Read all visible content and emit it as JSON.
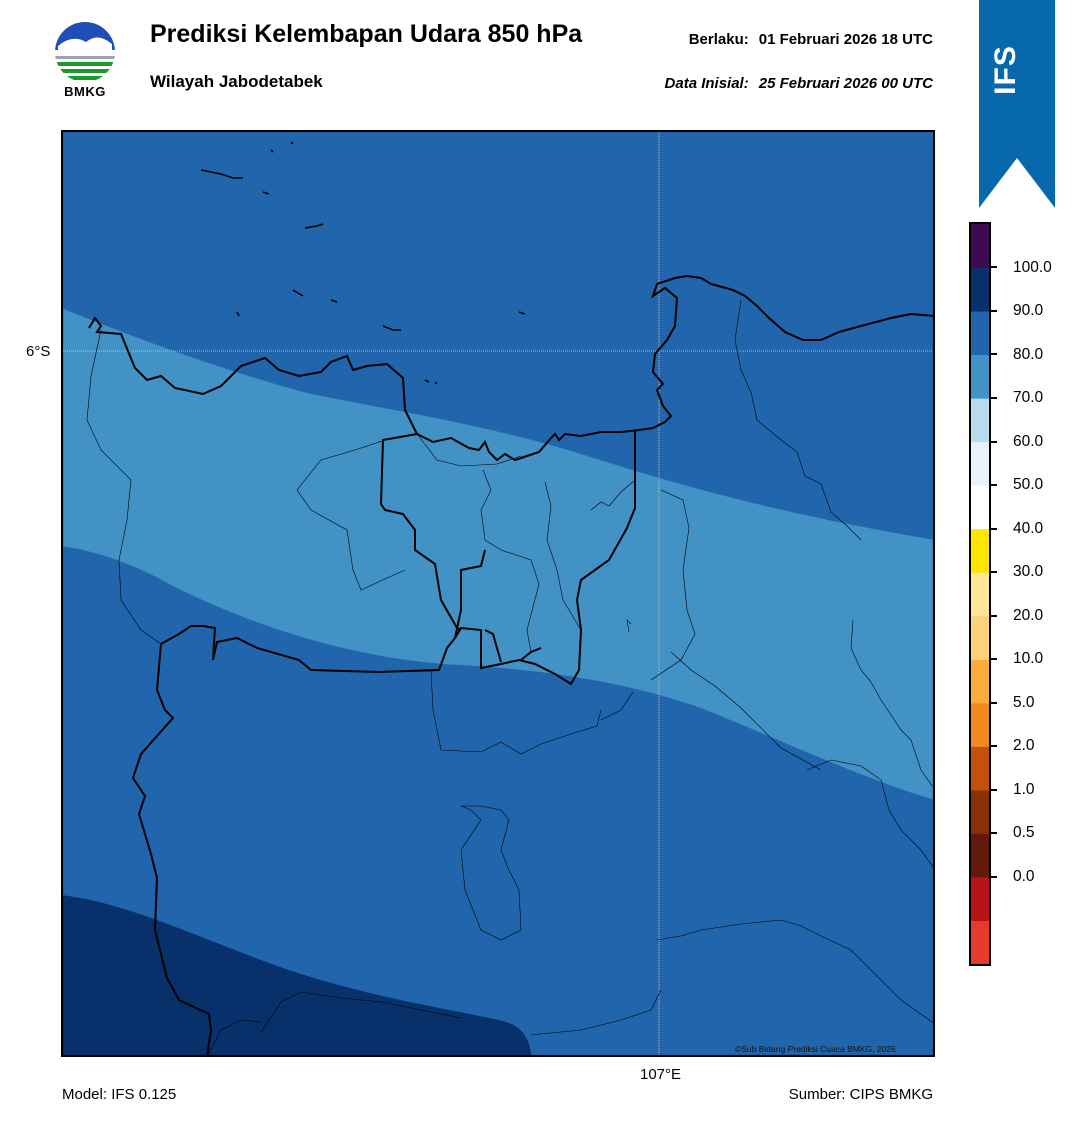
{
  "logo": {
    "text": "BMKG",
    "icon": "bmkg-logo-icon"
  },
  "header": {
    "title": "Prediksi Kelembapan Udara 850 hPa",
    "subtitle": "Wilayah Jabodetabek",
    "valid_label": "Berlaku:",
    "valid_value": "01 Februari 2026 18 UTC",
    "init_label": "Data Inisial:",
    "init_value": "25 Februari 2026 00 UTC"
  },
  "badge": {
    "text": "IFS",
    "color": "#0868ac"
  },
  "map": {
    "lat_label": "6°S",
    "lon_label": "107°E",
    "credit": "©Sub Bidang Prediksi Cuaca BMKG, 2026",
    "fill_colors": {
      "70-80": "#4292c6",
      "80-90": "#2166ac",
      "90-100": "#08306b"
    }
  },
  "colorbar": {
    "ticks": [
      "100.0",
      "90.0",
      "80.0",
      "70.0",
      "60.0",
      "50.0",
      "40.0",
      "30.0",
      "20.0",
      "10.0",
      "5.0",
      "2.0",
      "1.0",
      "0.5",
      "0.0"
    ],
    "colors": [
      "#e53a2e",
      "#b71419",
      "#621a0b",
      "#8a3005",
      "#c4500b",
      "#f08a1e",
      "#fbad3c",
      "#fed07b",
      "#fee59a",
      "#fde500",
      "#ffffff",
      "#e8f2fa",
      "#b8dbee",
      "#4292c6",
      "#2166ac",
      "#08306b",
      "#3f0a50"
    ]
  },
  "footer": {
    "model": "Model: IFS 0.125",
    "source": "Sumber: CIPS BMKG"
  }
}
